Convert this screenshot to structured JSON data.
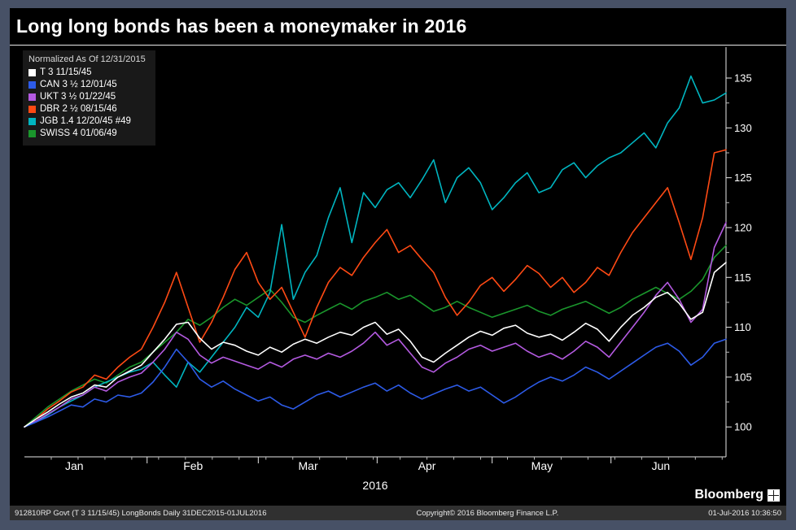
{
  "window": {
    "title": "Long long bonds has been a moneymaker in 2016"
  },
  "legend": {
    "header": "Normalized As Of 12/31/2015",
    "items": [
      {
        "label": "T 3 11/15/45",
        "color": "#ffffff"
      },
      {
        "label": "CAN 3 ½ 12/01/45",
        "color": "#2d5be8"
      },
      {
        "label": "UKT 3 ½ 01/22/45",
        "color": "#b45ae1"
      },
      {
        "label": "DBR 2 ½ 08/15/46",
        "color": "#ff4a14"
      },
      {
        "label": "JGB 1.4 12/20/45 #49",
        "color": "#00b5c0"
      },
      {
        "label": "SWISS 4 01/06/49",
        "color": "#1a962c"
      }
    ]
  },
  "footer": {
    "brand": "Bloomberg",
    "left": "912810RP Govt (T 3 11/15/45) LongBonds  Daily 31DEC2015-01JUL2016",
    "center": "Copyright© 2016 Bloomberg Finance L.P.",
    "right_datetime": "01-Jul-2016 10:36:50"
  },
  "chart_data": {
    "type": "line",
    "title": "Long long bonds has been a moneymaker in 2016",
    "subtitle": "Normalized As Of 12/31/2015",
    "xlabel": "2016",
    "ylabel": "",
    "x_unit": "days since 12/31/2015",
    "x_range": [
      0,
      183
    ],
    "ylim": [
      97,
      138.1
    ],
    "yticks": [
      100,
      105,
      110,
      115,
      120,
      125,
      130,
      135
    ],
    "month_ticks": [
      {
        "label": "Jan",
        "day": 13
      },
      {
        "label": "Feb",
        "day": 44
      },
      {
        "label": "Mar",
        "day": 74
      },
      {
        "label": "Apr",
        "day": 105
      },
      {
        "label": "May",
        "day": 135
      },
      {
        "label": "Jun",
        "day": 166
      }
    ],
    "month_start_days": [
      32,
      61,
      92,
      122,
      153
    ],
    "grid": false,
    "legend_position": "top-left",
    "series": [
      {
        "name": "T 3 11/15/45",
        "color": "#ffffff",
        "values": [
          100.0,
          100.8,
          101.5,
          102.3,
          103.0,
          103.4,
          104.2,
          104.0,
          105.0,
          105.6,
          106.2,
          107.5,
          108.8,
          110.3,
          110.5,
          108.9,
          107.8,
          108.5,
          108.2,
          107.6,
          107.2,
          108.0,
          107.5,
          108.3,
          108.8,
          108.4,
          109.0,
          109.5,
          109.2,
          110.0,
          110.5,
          109.3,
          109.8,
          108.6,
          107.0,
          106.5,
          107.4,
          108.2,
          109.0,
          109.6,
          109.2,
          109.9,
          110.2,
          109.4,
          109.0,
          109.3,
          108.7,
          109.5,
          110.4,
          109.8,
          108.6,
          110.0,
          111.2,
          112.0,
          113.0,
          113.5,
          112.4,
          110.8,
          111.5,
          115.5,
          116.5
        ]
      },
      {
        "name": "CAN 3 ½ 12/01/45",
        "color": "#2d5be8",
        "values": [
          100.0,
          100.5,
          101.0,
          101.6,
          102.2,
          102.0,
          102.8,
          102.5,
          103.2,
          103.0,
          103.4,
          104.5,
          106.0,
          107.8,
          106.5,
          104.8,
          104.0,
          104.6,
          103.8,
          103.2,
          102.6,
          103.0,
          102.2,
          101.8,
          102.5,
          103.2,
          103.6,
          103.0,
          103.5,
          104.0,
          104.4,
          103.6,
          104.2,
          103.4,
          102.8,
          103.3,
          103.8,
          104.2,
          103.6,
          104.0,
          103.2,
          102.4,
          103.0,
          103.8,
          104.5,
          105.0,
          104.6,
          105.2,
          106.0,
          105.5,
          104.8,
          105.6,
          106.4,
          107.2,
          108.0,
          108.4,
          107.6,
          106.2,
          107.0,
          108.4,
          108.8
        ]
      },
      {
        "name": "UKT 3 ½ 01/22/45",
        "color": "#b45ae1",
        "values": [
          100.0,
          100.6,
          101.3,
          102.0,
          102.8,
          103.2,
          104.0,
          103.6,
          104.5,
          105.0,
          105.4,
          106.5,
          107.8,
          109.5,
          108.8,
          107.2,
          106.4,
          107.0,
          106.6,
          106.2,
          105.8,
          106.5,
          106.0,
          106.8,
          107.2,
          106.8,
          107.4,
          107.0,
          107.6,
          108.4,
          109.5,
          108.2,
          108.8,
          107.4,
          106.0,
          105.5,
          106.4,
          107.0,
          107.8,
          108.2,
          107.6,
          108.0,
          108.4,
          107.6,
          107.0,
          107.4,
          106.8,
          107.6,
          108.6,
          108.0,
          107.0,
          108.5,
          110.0,
          111.5,
          113.2,
          114.5,
          112.8,
          110.5,
          111.8,
          118.0,
          120.5
        ]
      },
      {
        "name": "DBR 2 ½ 08/15/46",
        "color": "#ff4a14",
        "values": [
          100.0,
          100.8,
          101.8,
          102.6,
          103.5,
          104.0,
          105.2,
          104.8,
          106.0,
          107.0,
          107.8,
          110.0,
          112.5,
          115.5,
          112.0,
          108.5,
          110.5,
          113.0,
          115.8,
          117.5,
          114.5,
          112.8,
          114.0,
          111.5,
          109.0,
          112.0,
          114.5,
          116.0,
          115.2,
          117.0,
          118.5,
          119.8,
          117.5,
          118.2,
          116.8,
          115.5,
          113.0,
          111.2,
          112.5,
          114.2,
          115.0,
          113.6,
          114.8,
          116.2,
          115.4,
          114.0,
          115.0,
          113.5,
          114.5,
          116.0,
          115.2,
          117.5,
          119.5,
          121.0,
          122.5,
          124.0,
          120.5,
          116.8,
          121.0,
          127.5,
          127.8
        ]
      },
      {
        "name": "JGB 1.4 12/20/45 #49",
        "color": "#00b5c0",
        "values": [
          100.0,
          100.5,
          101.2,
          102.0,
          102.6,
          103.2,
          104.0,
          104.5,
          105.0,
          105.5,
          105.8,
          106.5,
          105.2,
          104.0,
          106.5,
          105.5,
          107.0,
          108.5,
          110.0,
          112.0,
          111.0,
          113.5,
          120.3,
          112.8,
          115.5,
          117.2,
          121.0,
          124.0,
          118.5,
          123.5,
          122.0,
          123.8,
          124.5,
          123.0,
          124.8,
          126.8,
          122.5,
          125.0,
          126.0,
          124.5,
          121.8,
          123.0,
          124.5,
          125.5,
          123.5,
          124.0,
          125.8,
          126.5,
          125.0,
          126.2,
          127.0,
          127.5,
          128.5,
          129.5,
          128.0,
          130.5,
          132.0,
          135.2,
          132.5,
          132.8,
          133.5
        ]
      },
      {
        "name": "SWISS 4 01/06/49",
        "color": "#1a962c",
        "values": [
          100.0,
          101.0,
          102.0,
          102.8,
          103.6,
          104.2,
          104.8,
          104.4,
          105.2,
          106.0,
          106.5,
          107.5,
          108.5,
          109.5,
          110.8,
          110.2,
          111.0,
          112.0,
          112.8,
          112.2,
          113.0,
          113.8,
          112.5,
          111.0,
          110.5,
          111.2,
          111.8,
          112.4,
          111.8,
          112.6,
          113.0,
          113.5,
          112.8,
          113.2,
          112.4,
          111.6,
          112.0,
          112.6,
          112.0,
          111.5,
          111.0,
          111.4,
          111.8,
          112.2,
          111.6,
          111.2,
          111.8,
          112.2,
          112.6,
          112.0,
          111.4,
          112.0,
          112.8,
          113.4,
          114.0,
          113.4,
          112.8,
          113.6,
          114.8,
          117.0,
          118.2
        ]
      }
    ]
  }
}
